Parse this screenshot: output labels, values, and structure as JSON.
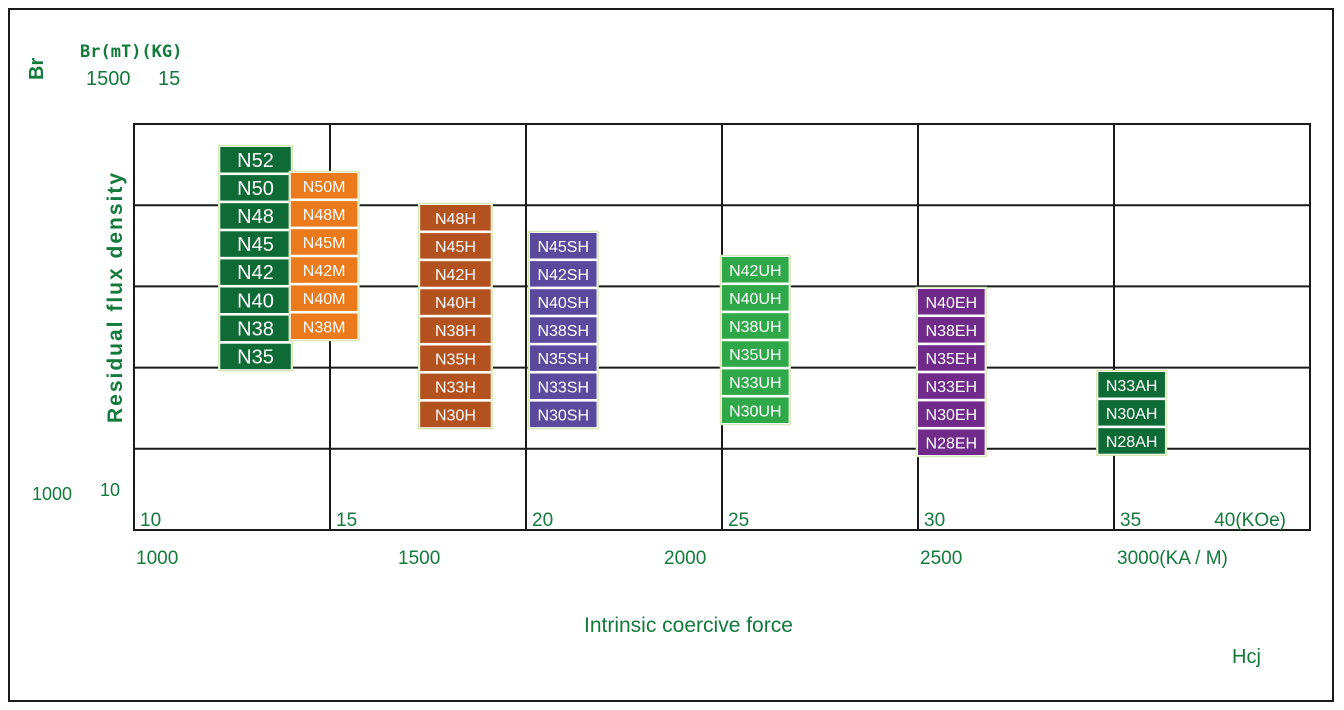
{
  "header": {
    "br_symbol": "Br",
    "br_units": "Br(mT)(KG)",
    "br_top_mt": "1500",
    "br_top_kg": "15"
  },
  "y_axis": {
    "label": "Residual flux density",
    "bottom_mt": "1000",
    "bottom_kg": "10"
  },
  "x_axis": {
    "koe_ticks": [
      "10",
      "15",
      "20",
      "25",
      "30",
      "35",
      "40(KOe)"
    ],
    "kam_ticks": [
      "1000",
      "1500",
      "2000",
      "2500",
      "3000(KA / M)"
    ],
    "label": "Intrinsic coercive force",
    "symbol": "Hcj"
  },
  "colors": {
    "text_green": "#127a3a",
    "grid": "#1a1a1a",
    "N": "#0f6b36",
    "M": "#ea7a1c",
    "H": "#b3521f",
    "SH": "#5a4a9e",
    "UH": "#2fa84a",
    "EH": "#6f2a8a",
    "AH": "#0f6b36"
  },
  "chart_data": {
    "type": "table",
    "x_unit": "KOe",
    "y_unit": "KG",
    "xlim": [
      10,
      40
    ],
    "ylim": [
      10,
      15
    ],
    "grid": true,
    "series": [
      {
        "name": "N",
        "x_range": [
          12.2,
          14.0
        ],
        "grades": [
          "N52",
          "N50",
          "N48",
          "N45",
          "N42",
          "N40",
          "N38",
          "N35"
        ]
      },
      {
        "name": "M",
        "x_range": [
          14.0,
          15.7
        ],
        "grades": [
          "N50M",
          "N48M",
          "N45M",
          "N42M",
          "N40M",
          "N38M"
        ]
      },
      {
        "name": "H",
        "x_range": [
          17.3,
          19.1
        ],
        "grades": [
          "N48H",
          "N45H",
          "N42H",
          "N40H",
          "N38H",
          "N35H",
          "N33H",
          "N30H"
        ]
      },
      {
        "name": "SH",
        "x_range": [
          20.1,
          21.8
        ],
        "grades": [
          "N45SH",
          "N42SH",
          "N40SH",
          "N38SH",
          "N35SH",
          "N33SH",
          "N30SH"
        ]
      },
      {
        "name": "UH",
        "x_range": [
          25.0,
          26.7
        ],
        "grades": [
          "N42UH",
          "N40UH",
          "N38UH",
          "N35UH",
          "N33UH",
          "N30UH"
        ]
      },
      {
        "name": "EH",
        "x_range": [
          30.0,
          31.7
        ],
        "grades": [
          "N40EH",
          "N38EH",
          "N35EH",
          "N33EH",
          "N30EH",
          "N28EH"
        ]
      },
      {
        "name": "AH",
        "x_range": [
          34.6,
          36.3
        ],
        "grades": [
          "N33AH",
          "N30AH",
          "N28AH"
        ]
      }
    ]
  }
}
